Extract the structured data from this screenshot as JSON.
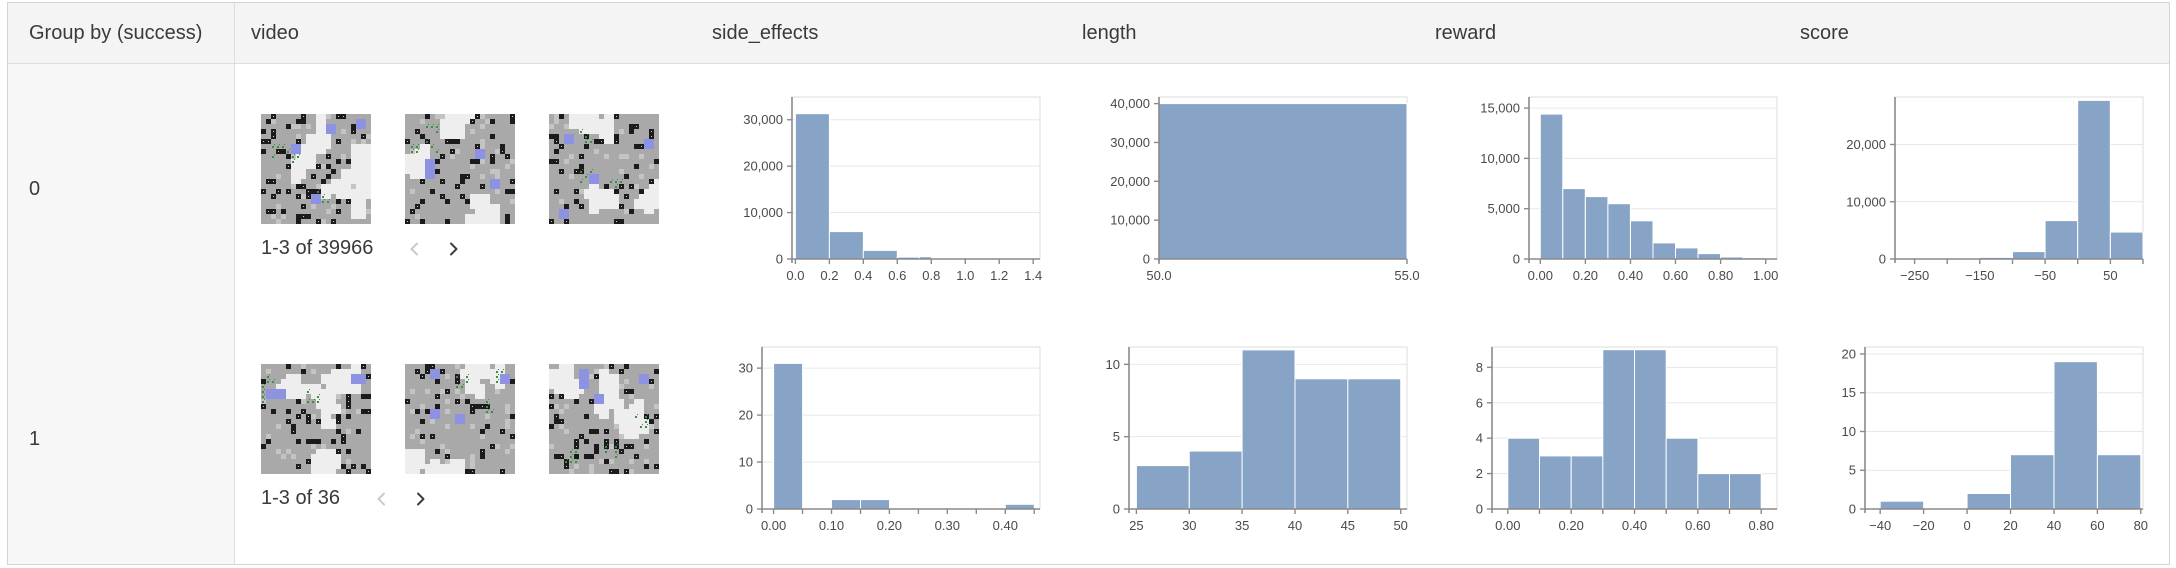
{
  "table": {
    "columns": [
      "Group by (success)",
      "video",
      "side_effects",
      "length",
      "reward",
      "score"
    ]
  },
  "rows": [
    {
      "group_label": "0",
      "video": {
        "pagination": "1-3 of 39966",
        "thumbnail_count": 3,
        "prev_enabled": false,
        "next_enabled": true
      }
    },
    {
      "group_label": "1",
      "video": {
        "pagination": "1-3 of 36",
        "thumbnail_count": 3,
        "prev_enabled": false,
        "next_enabled": true
      }
    }
  ],
  "chart_data": [
    {
      "type": "bar",
      "row_group": "0",
      "column": "side_effects",
      "bins": [
        [
          0.0,
          0.2,
          31300
        ],
        [
          0.2,
          0.4,
          5900
        ],
        [
          0.4,
          0.6,
          1850
        ],
        [
          0.6,
          0.73,
          400
        ],
        [
          0.73,
          0.8,
          500
        ]
      ],
      "xlim": [
        -0.02,
        1.44
      ],
      "ylim": [
        0,
        34900
      ],
      "x_ticks": [
        0,
        0.2,
        0.4,
        0.6,
        0.8,
        1.0,
        1.2,
        1.4
      ],
      "x_tick_labels": [
        "0.0",
        "0.2",
        "0.4",
        "0.6",
        "0.8",
        "1.0",
        "1.2",
        "1.4"
      ],
      "y_ticks": [
        0,
        10000,
        20000,
        30000
      ],
      "y_tick_labels": [
        "0",
        "10,000",
        "20,000",
        "30,000"
      ],
      "grid": true,
      "legend": "none"
    },
    {
      "type": "bar",
      "row_group": "0",
      "column": "length",
      "bins": [
        [
          50,
          55,
          40000
        ]
      ],
      "xlim": [
        50,
        55
      ],
      "ylim": [
        0,
        41700
      ],
      "x_ticks": [
        50,
        55
      ],
      "x_tick_labels": [
        "50.0",
        "55.0"
      ],
      "y_ticks": [
        0,
        10000,
        20000,
        30000,
        40000
      ],
      "y_tick_labels": [
        "0",
        "10,000",
        "20,000",
        "30,000",
        "40,000"
      ],
      "grid": true,
      "legend": "none"
    },
    {
      "type": "bar",
      "row_group": "0",
      "column": "reward",
      "bins": [
        [
          0,
          0.1,
          14400
        ],
        [
          0.1,
          0.2,
          7000
        ],
        [
          0.2,
          0.3,
          6200
        ],
        [
          0.3,
          0.4,
          5500
        ],
        [
          0.4,
          0.5,
          3800
        ],
        [
          0.5,
          0.6,
          1600
        ],
        [
          0.6,
          0.7,
          1100
        ],
        [
          0.7,
          0.8,
          540
        ],
        [
          0.8,
          0.9,
          200
        ],
        [
          0.9,
          1.0,
          120
        ]
      ],
      "xlim": [
        -0.05,
        1.05
      ],
      "ylim": [
        0,
        16100
      ],
      "x_ticks": [
        0,
        0.2,
        0.4,
        0.6,
        0.8,
        1.0
      ],
      "x_tick_labels": [
        "0.00",
        "0.20",
        "0.40",
        "0.60",
        "0.80",
        "1.00"
      ],
      "y_ticks": [
        0,
        5000,
        10000,
        15000
      ],
      "y_tick_labels": [
        "0",
        "5,000",
        "10,000",
        "15,000"
      ],
      "grid": true,
      "legend": "none"
    },
    {
      "type": "bar",
      "row_group": "0",
      "column": "score",
      "bins": [
        [
          -200,
          -150,
          150
        ],
        [
          -150,
          -100,
          280
        ],
        [
          -100,
          -50,
          1300
        ],
        [
          -50,
          0,
          6700
        ],
        [
          0,
          50,
          27700
        ],
        [
          50,
          100,
          4700
        ]
      ],
      "xlim": [
        -280,
        100
      ],
      "ylim": [
        0,
        28300
      ],
      "x_ticks": [
        -250,
        -150,
        -50,
        50
      ],
      "x_tick_labels": [
        "−250",
        "−150",
        "−50",
        "50"
      ],
      "x_minor_ticks": [
        -200,
        -100,
        0,
        100
      ],
      "y_ticks": [
        0,
        10000,
        20000
      ],
      "y_tick_labels": [
        "0",
        "10,000",
        "20,000"
      ],
      "grid": true,
      "legend": "none"
    },
    {
      "type": "bar",
      "row_group": "1",
      "column": "side_effects",
      "bins": [
        [
          0,
          0.05,
          31
        ],
        [
          0.1,
          0.15,
          2
        ],
        [
          0.15,
          0.2,
          2
        ],
        [
          0.4,
          0.45,
          1
        ]
      ],
      "xlim": [
        -0.02,
        0.46
      ],
      "ylim": [
        0,
        34.5
      ],
      "x_ticks": [
        0,
        0.1,
        0.2,
        0.3,
        0.4
      ],
      "x_tick_labels": [
        "0.00",
        "0.10",
        "0.20",
        "0.30",
        "0.40"
      ],
      "x_minor_ticks": [
        0.05,
        0.15,
        0.25,
        0.35,
        0.45
      ],
      "y_ticks": [
        0,
        10,
        20,
        30
      ],
      "y_tick_labels": [
        "0",
        "10",
        "20",
        "30"
      ],
      "grid": true,
      "legend": "none"
    },
    {
      "type": "bar",
      "row_group": "1",
      "column": "length",
      "bins": [
        [
          25,
          30,
          3
        ],
        [
          30,
          35,
          4
        ],
        [
          35,
          40,
          11
        ],
        [
          40,
          45,
          9
        ],
        [
          45,
          50,
          9
        ]
      ],
      "xlim": [
        24.3,
        50.6
      ],
      "ylim": [
        0,
        11.2
      ],
      "x_ticks": [
        25,
        30,
        35,
        40,
        45,
        50
      ],
      "x_tick_labels": [
        "25",
        "30",
        "35",
        "40",
        "45",
        "50"
      ],
      "y_ticks": [
        0,
        5,
        10
      ],
      "y_tick_labels": [
        "0",
        "5",
        "10"
      ],
      "grid": true,
      "legend": "none"
    },
    {
      "type": "bar",
      "row_group": "1",
      "column": "reward",
      "bins": [
        [
          0,
          0.1,
          4
        ],
        [
          0.1,
          0.2,
          3
        ],
        [
          0.2,
          0.3,
          3
        ],
        [
          0.3,
          0.4,
          9
        ],
        [
          0.4,
          0.5,
          9
        ],
        [
          0.5,
          0.6,
          4
        ],
        [
          0.6,
          0.7,
          2
        ],
        [
          0.7,
          0.8,
          2
        ]
      ],
      "xlim": [
        -0.05,
        0.85
      ],
      "ylim": [
        0,
        9.15
      ],
      "x_ticks": [
        0,
        0.2,
        0.4,
        0.6,
        0.8
      ],
      "x_tick_labels": [
        "0.00",
        "0.20",
        "0.40",
        "0.60",
        "0.80"
      ],
      "x_minor_ticks": [
        0.1,
        0.3,
        0.5,
        0.7
      ],
      "y_ticks": [
        0,
        2,
        4,
        6,
        8
      ],
      "y_tick_labels": [
        "0",
        "2",
        "4",
        "6",
        "8"
      ],
      "grid": true,
      "legend": "none"
    },
    {
      "type": "bar",
      "row_group": "1",
      "column": "score",
      "bins": [
        [
          -40,
          -20,
          1
        ],
        [
          0,
          20,
          2
        ],
        [
          20,
          40,
          7
        ],
        [
          40,
          60,
          19
        ],
        [
          60,
          80,
          7
        ]
      ],
      "xlim": [
        -47,
        81
      ],
      "ylim": [
        0,
        20.9
      ],
      "x_ticks": [
        -40,
        -20,
        0,
        20,
        40,
        60,
        80
      ],
      "x_tick_labels": [
        "−40",
        "−20",
        "0",
        "20",
        "40",
        "60",
        "80"
      ],
      "y_ticks": [
        0,
        5,
        10,
        15,
        20
      ],
      "y_tick_labels": [
        "0",
        "5",
        "10",
        "15",
        "20"
      ],
      "grid": true,
      "legend": "none"
    }
  ],
  "colors": {
    "bar": "#87a4c6",
    "axis": "#8a8a8a",
    "plot_border": "#dcdcdc",
    "gridline": "#e7e7e7",
    "tick_text": "#4a4a4a",
    "header_bg": "#f4f4f4",
    "group_col_bg": "#f7f7f7",
    "table_border": "#dddddd",
    "text": "#3a3a3a",
    "chevron_disabled": "#c9c9c9",
    "chevron_enabled": "#3f3f3f"
  }
}
